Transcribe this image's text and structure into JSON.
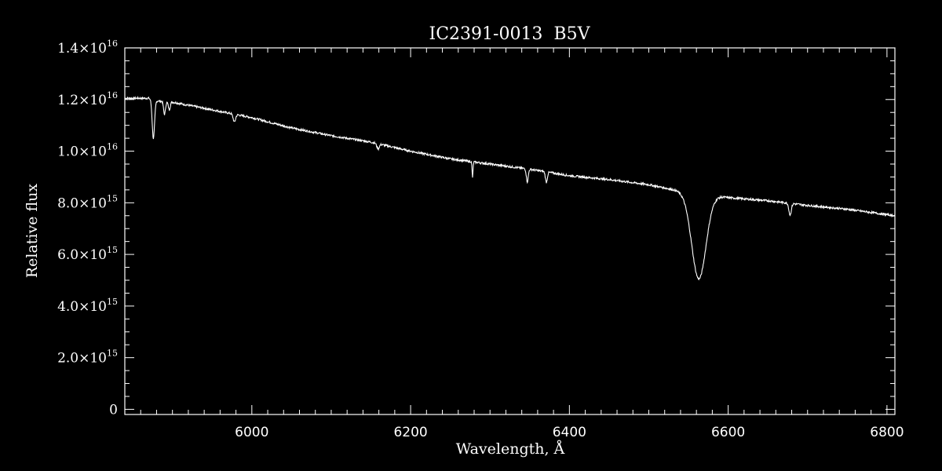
{
  "chart_data": {
    "type": "line",
    "title": "IC2391-0013  B5V",
    "xlabel": "Wavelength, Å",
    "ylabel": "Relative flux",
    "xlim": [
      5840,
      6810
    ],
    "ylim": [
      -200000000000000.0,
      1.4e+16
    ],
    "grid": false,
    "background": "#000000",
    "foreground": "#ffffff",
    "x_ticks": [
      {
        "value": 6000,
        "label": "6000"
      },
      {
        "value": 6200,
        "label": "6200"
      },
      {
        "value": 6400,
        "label": "6400"
      },
      {
        "value": 6600,
        "label": "6600"
      },
      {
        "value": 6800,
        "label": "6800"
      }
    ],
    "x_minor_step": 20,
    "y_ticks": [
      {
        "value": 0,
        "mantissa": "0",
        "exponent": ""
      },
      {
        "value": 2000000000000000.0,
        "mantissa": "2.0×10",
        "exponent": "15"
      },
      {
        "value": 4000000000000000.0,
        "mantissa": "4.0×10",
        "exponent": "15"
      },
      {
        "value": 6000000000000000.0,
        "mantissa": "6.0×10",
        "exponent": "15"
      },
      {
        "value": 8000000000000000.0,
        "mantissa": "8.0×10",
        "exponent": "15"
      },
      {
        "value": 1e+16,
        "mantissa": "1.0×10",
        "exponent": "16"
      },
      {
        "value": 1.2e+16,
        "mantissa": "1.2×10",
        "exponent": "16"
      },
      {
        "value": 1.4e+16,
        "mantissa": "1.4×10",
        "exponent": "16"
      }
    ],
    "y_minor_step": 500000000000000.0,
    "series": [
      {
        "continuum": [
          [
            5840,
            1.205e+16
          ],
          [
            5870,
            1.205e+16
          ],
          [
            5880,
            1.195e+16
          ],
          [
            5900,
            1.19e+16
          ],
          [
            5950,
            1.16e+16
          ],
          [
            6000,
            1.13e+16
          ],
          [
            6050,
            1.09e+16
          ],
          [
            6100,
            1.06e+16
          ],
          [
            6150,
            1.035e+16
          ],
          [
            6200,
            1e+16
          ],
          [
            6250,
            9700000000000000.0
          ],
          [
            6300,
            9500000000000000.0
          ],
          [
            6350,
            9300000000000000.0
          ],
          [
            6400,
            9050000000000000.0
          ],
          [
            6450,
            8900000000000000.0
          ],
          [
            6500,
            8700000000000000.0
          ],
          [
            6540,
            8450000000000000.0
          ],
          [
            6600,
            8200000000000000.0
          ],
          [
            6650,
            8080000000000000.0
          ],
          [
            6700,
            7900000000000000.0
          ],
          [
            6750,
            7750000000000000.0
          ],
          [
            6810,
            7500000000000000.0
          ]
        ],
        "absorption_lines": [
          {
            "center": 5876,
            "depth": 1500000000000000.0,
            "width": 1.5
          },
          {
            "center": 5890,
            "depth": 500000000000000.0,
            "width": 1.2
          },
          {
            "center": 5896,
            "depth": 300000000000000.0,
            "width": 1.2
          },
          {
            "center": 5978,
            "depth": 300000000000000.0,
            "width": 1.5
          },
          {
            "center": 6159,
            "depth": 200000000000000.0,
            "width": 1.5
          },
          {
            "center": 6278,
            "depth": 600000000000000.0,
            "width": 0.6
          },
          {
            "center": 6347,
            "depth": 500000000000000.0,
            "width": 1.2
          },
          {
            "center": 6371,
            "depth": 400000000000000.0,
            "width": 1.2
          },
          {
            "center": 6563,
            "depth": 3300000000000000.0,
            "width": 9.0
          },
          {
            "center": 6678,
            "depth": 450000000000000.0,
            "width": 1.5
          }
        ]
      }
    ]
  }
}
